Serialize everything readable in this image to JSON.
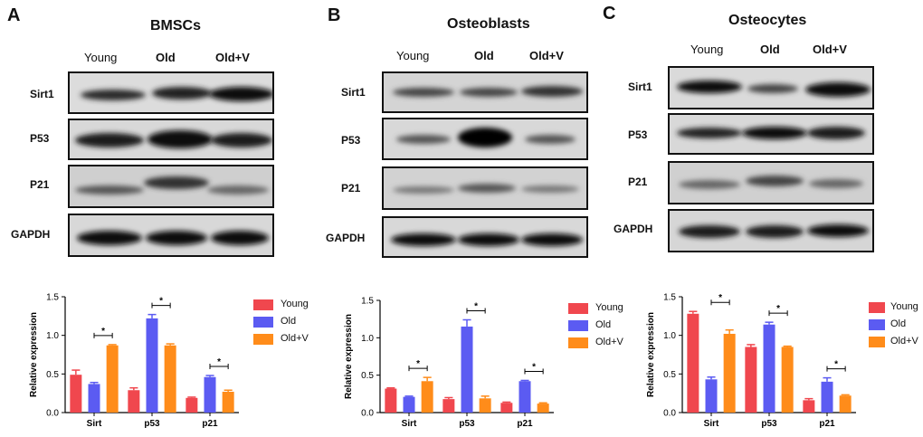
{
  "blot_panels": [
    {
      "letter": "A",
      "title": "BMSCs",
      "lanes": [
        "Young",
        "Old",
        "Old+V"
      ],
      "rows": [
        "Sirt1",
        "P53",
        "P21",
        "GAPDH"
      ]
    },
    {
      "letter": "B",
      "title": "Osteoblasts",
      "lanes": [
        "Young",
        "Old",
        "Old+V"
      ],
      "rows": [
        "Sirt1",
        "P53",
        "P21",
        "GAPDH"
      ]
    },
    {
      "letter": "C",
      "title": "Osteocytes",
      "lanes": [
        "Young",
        "Old",
        "Old+V"
      ],
      "rows": [
        "Sirt1",
        "P53",
        "P21",
        "GAPDH"
      ]
    }
  ],
  "chart_data": [
    {
      "type": "bar",
      "panel": "A",
      "categories": [
        "Sirt",
        "p53",
        "p21"
      ],
      "series": [
        {
          "name": "Young",
          "color": "#f0474e",
          "values": [
            0.49,
            0.29,
            0.19
          ],
          "errors": [
            0.06,
            0.03,
            0.01
          ]
        },
        {
          "name": "Old",
          "color": "#5b5bf2",
          "values": [
            0.37,
            1.22,
            0.46
          ],
          "errors": [
            0.02,
            0.05,
            0.02
          ]
        },
        {
          "name": "Old+V",
          "color": "#ff8c1a",
          "values": [
            0.87,
            0.87,
            0.27
          ],
          "errors": [
            0.01,
            0.02,
            0.02
          ]
        }
      ],
      "ylabel": "Relative expression",
      "ylim": [
        0.0,
        1.5
      ],
      "yticks": [
        "0.0",
        "0.5",
        "1.0",
        "1.5"
      ],
      "significance": [
        {
          "category": 0,
          "from": 1,
          "to": 2,
          "label": "*"
        },
        {
          "category": 1,
          "from": 1,
          "to": 2,
          "label": "*"
        },
        {
          "category": 2,
          "from": 1,
          "to": 2,
          "label": "*"
        }
      ]
    },
    {
      "type": "bar",
      "panel": "B",
      "categories": [
        "Sirt",
        "p53",
        "p21"
      ],
      "series": [
        {
          "name": "Young",
          "color": "#f0474e",
          "values": [
            0.32,
            0.18,
            0.13
          ],
          "errors": [
            0.01,
            0.02,
            0.01
          ]
        },
        {
          "name": "Old",
          "color": "#5b5bf2",
          "values": [
            0.21,
            1.15,
            0.42
          ],
          "errors": [
            0.01,
            0.09,
            0.01
          ]
        },
        {
          "name": "Old+V",
          "color": "#ff8c1a",
          "values": [
            0.42,
            0.19,
            0.12
          ],
          "errors": [
            0.05,
            0.03,
            0.01
          ]
        }
      ],
      "ylabel": "Relative expression",
      "ylim": [
        0.0,
        1.5
      ],
      "yticks": [
        "0.0",
        "0.5",
        "1.0",
        "1.5"
      ],
      "significance": [
        {
          "category": 0,
          "from": 1,
          "to": 2,
          "label": "*"
        },
        {
          "category": 1,
          "from": 1,
          "to": 2,
          "label": "*"
        },
        {
          "category": 2,
          "from": 1,
          "to": 2,
          "label": "*"
        }
      ]
    },
    {
      "type": "bar",
      "panel": "C",
      "categories": [
        "Sirt",
        "p53",
        "p21"
      ],
      "series": [
        {
          "name": "Young",
          "color": "#f0474e",
          "values": [
            1.28,
            0.85,
            0.16
          ],
          "errors": [
            0.03,
            0.03,
            0.02
          ]
        },
        {
          "name": "Old",
          "color": "#5b5bf2",
          "values": [
            0.43,
            1.14,
            0.4
          ],
          "errors": [
            0.03,
            0.03,
            0.05
          ]
        },
        {
          "name": "Old+V",
          "color": "#ff8c1a",
          "values": [
            1.02,
            0.85,
            0.22
          ],
          "errors": [
            0.05,
            0.01,
            0.01
          ]
        }
      ],
      "ylabel": "Relative expression",
      "ylim": [
        0.0,
        1.5
      ],
      "yticks": [
        "0.0",
        "0.5",
        "1.0",
        "1.5"
      ],
      "significance": [
        {
          "category": 0,
          "from": 1,
          "to": 2,
          "label": "*"
        },
        {
          "category": 1,
          "from": 1,
          "to": 2,
          "label": "*"
        },
        {
          "category": 2,
          "from": 1,
          "to": 2,
          "label": "*"
        }
      ]
    }
  ]
}
